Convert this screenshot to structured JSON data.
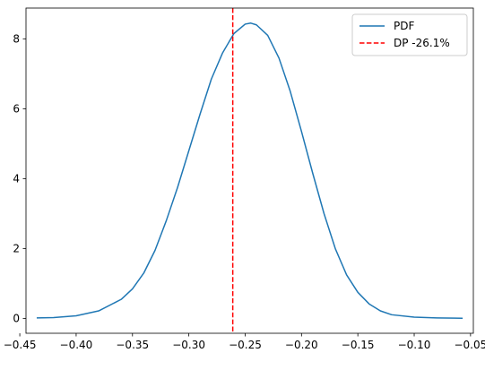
{
  "chart_data": {
    "type": "line",
    "title": "",
    "xlabel": "",
    "ylabel": "",
    "xlim": [
      -0.4445,
      -0.0475
    ],
    "ylim": [
      -0.42,
      8.88
    ],
    "x_ticks": [
      -0.45,
      -0.4,
      -0.35,
      -0.3,
      -0.25,
      -0.2,
      -0.15,
      -0.1,
      -0.05
    ],
    "x_tick_labels": [
      "−0.45",
      "−0.40",
      "−0.35",
      "−0.30",
      "−0.25",
      "−0.20",
      "−0.15",
      "−0.10",
      "−0.05"
    ],
    "y_ticks": [
      0,
      2,
      4,
      6,
      8
    ],
    "y_tick_labels": [
      "0",
      "2",
      "4",
      "6",
      "8"
    ],
    "grid": false,
    "legend_position": "top-right",
    "series": [
      {
        "name": "PDF",
        "style": "solid",
        "color": "#1f77b4",
        "points": [
          [
            -0.435,
            0.02
          ],
          [
            -0.42,
            0.03
          ],
          [
            -0.4,
            0.08
          ],
          [
            -0.38,
            0.22
          ],
          [
            -0.36,
            0.55
          ],
          [
            -0.35,
            0.85
          ],
          [
            -0.34,
            1.3
          ],
          [
            -0.33,
            1.95
          ],
          [
            -0.32,
            2.8
          ],
          [
            -0.31,
            3.75
          ],
          [
            -0.3,
            4.8
          ],
          [
            -0.29,
            5.85
          ],
          [
            -0.28,
            6.85
          ],
          [
            -0.27,
            7.6
          ],
          [
            -0.26,
            8.15
          ],
          [
            -0.25,
            8.42
          ],
          [
            -0.245,
            8.45
          ],
          [
            -0.24,
            8.4
          ],
          [
            -0.23,
            8.1
          ],
          [
            -0.22,
            7.45
          ],
          [
            -0.21,
            6.5
          ],
          [
            -0.2,
            5.35
          ],
          [
            -0.19,
            4.15
          ],
          [
            -0.18,
            3.0
          ],
          [
            -0.17,
            2.0
          ],
          [
            -0.16,
            1.25
          ],
          [
            -0.15,
            0.75
          ],
          [
            -0.14,
            0.42
          ],
          [
            -0.13,
            0.22
          ],
          [
            -0.12,
            0.11
          ],
          [
            -0.1,
            0.04
          ],
          [
            -0.08,
            0.02
          ],
          [
            -0.057,
            0.01
          ]
        ]
      },
      {
        "name": "DP -26.1%",
        "style": "dashed",
        "color": "#ff0000",
        "x_constant": -0.261
      }
    ]
  }
}
